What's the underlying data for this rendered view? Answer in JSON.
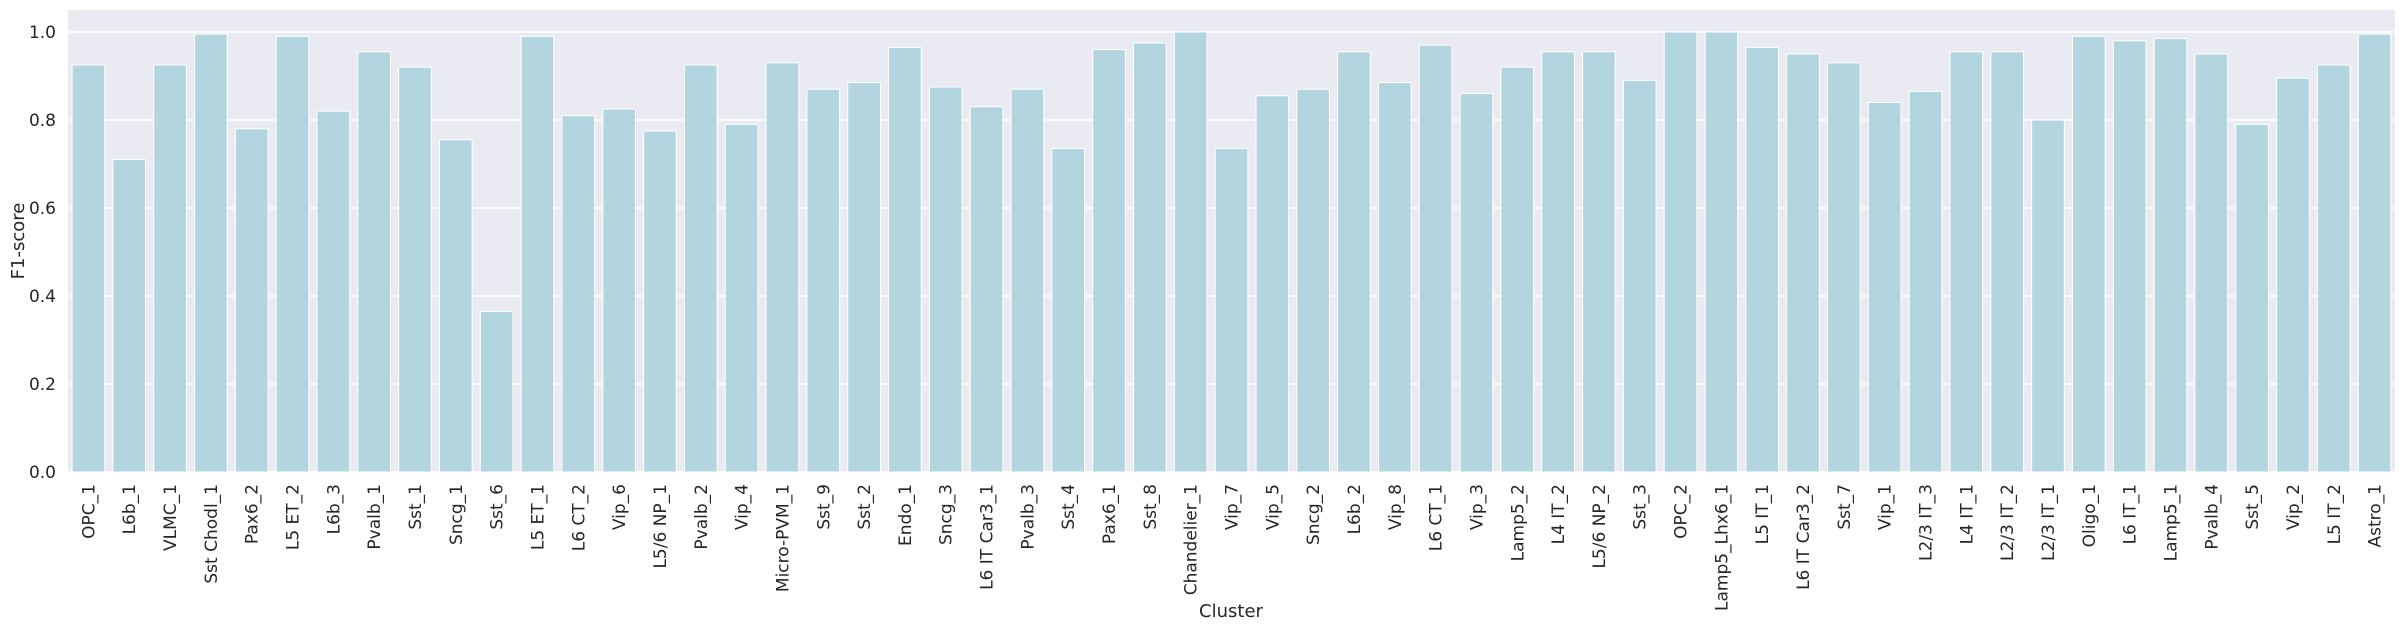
{
  "chart_data": {
    "type": "bar",
    "xlabel": "Cluster",
    "ylabel": "F1-score",
    "ylim": [
      0,
      1.05
    ],
    "yticks": [
      0.0,
      0.2,
      0.4,
      0.6,
      0.8,
      1.0
    ],
    "ytick_labels": [
      "0.0",
      "0.2",
      "0.4",
      "0.6",
      "0.8",
      "1.0"
    ],
    "grid": true,
    "bar_color": "#b3d5e0",
    "background_color": "#eaeaf2",
    "categories": [
      "OPC_1",
      "L6b_1",
      "VLMC_1",
      "Sst Chodl_1",
      "Pax6_2",
      "L5 ET_2",
      "L6b_3",
      "Pvalb_1",
      "Sst_1",
      "Sncg_1",
      "Sst_6",
      "L5 ET_1",
      "L6 CT_2",
      "Vip_6",
      "L5/6 NP_1",
      "Pvalb_2",
      "Vip_4",
      "Micro-PVM_1",
      "Sst_9",
      "Sst_2",
      "Endo_1",
      "Sncg_3",
      "L6 IT Car3_1",
      "Pvalb_3",
      "Sst_4",
      "Pax6_1",
      "Sst_8",
      "Chandelier_1",
      "Vip_7",
      "Vip_5",
      "Sncg_2",
      "L6b_2",
      "Vip_8",
      "L6 CT_1",
      "Vip_3",
      "Lamp5_2",
      "L4 IT_2",
      "L5/6 NP_2",
      "Sst_3",
      "OPC_2",
      "Lamp5_Lhx6_1",
      "L5 IT_1",
      "L6 IT Car3_2",
      "Sst_7",
      "Vip_1",
      "L2/3 IT_3",
      "L4 IT_1",
      "L2/3 IT_2",
      "L2/3 IT_1",
      "Oligo_1",
      "L6 IT_1",
      "Lamp5_1",
      "Pvalb_4",
      "Sst_5",
      "Vip_2",
      "L5 IT_2",
      "Astro_1"
    ],
    "values": [
      0.925,
      0.71,
      0.925,
      0.995,
      0.78,
      0.99,
      0.82,
      0.955,
      0.92,
      0.755,
      0.365,
      0.99,
      0.81,
      0.825,
      0.775,
      0.925,
      0.79,
      0.93,
      0.87,
      0.885,
      0.965,
      0.875,
      0.83,
      0.87,
      0.735,
      0.96,
      0.975,
      1.0,
      0.735,
      0.855,
      0.87,
      0.955,
      0.885,
      0.97,
      0.86,
      0.92,
      0.955,
      0.955,
      0.89,
      1.0,
      1.0,
      0.965,
      0.95,
      0.93,
      0.84,
      0.865,
      0.955,
      0.955,
      0.8,
      0.99,
      0.98,
      0.985,
      0.95,
      0.79,
      0.895,
      0.925,
      0.995
    ]
  }
}
